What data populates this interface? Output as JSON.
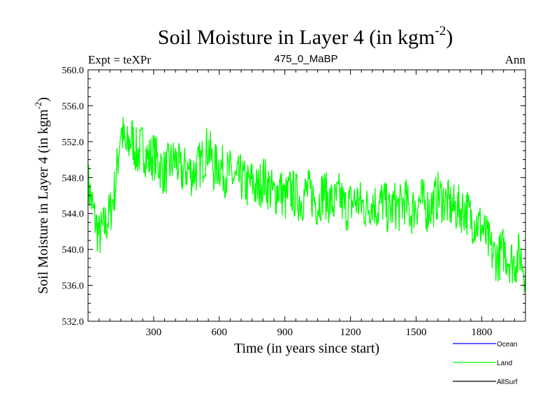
{
  "chart_data": {
    "type": "line",
    "title": "Soil Moisture in Layer 4 (in kgm",
    "title_superscript": "-2",
    "title_suffix": ")",
    "subtitle_left": "Expt = teXPr",
    "subtitle_center": "475_0_MaBP",
    "subtitle_right": "Ann",
    "xlabel": "Time (in years since start)",
    "ylabel": "Soil Moisture in Layer 4 (in kgm",
    "ylabel_superscript": "-2",
    "ylabel_suffix": ")",
    "xlim": [
      0,
      2000
    ],
    "ylim": [
      532.0,
      560.0
    ],
    "x_ticks": [
      300,
      600,
      900,
      1200,
      1500,
      1800
    ],
    "x_tick_labels": [
      "300",
      "600",
      "900",
      "1200",
      "1500",
      "1800"
    ],
    "y_ticks": [
      532,
      536,
      540,
      544,
      548,
      552,
      556,
      560
    ],
    "y_tick_labels": [
      "532.0",
      "536.0",
      "540.0",
      "544.0",
      "548.0",
      "552.0",
      "556.0",
      "560.0"
    ],
    "grid": false,
    "legend_position": "bottom-right",
    "legend": [
      {
        "name": "Ocean",
        "color": "#0000ff"
      },
      {
        "name": "Land",
        "color": "#00ff00"
      },
      {
        "name": "AllSurf",
        "color": "#000000"
      }
    ],
    "series": [
      {
        "name": "Land",
        "color": "#00ff00",
        "x": [
          0,
          25,
          50,
          75,
          100,
          125,
          150,
          175,
          200,
          225,
          250,
          275,
          300,
          325,
          350,
          375,
          400,
          425,
          450,
          475,
          500,
          525,
          550,
          575,
          600,
          625,
          650,
          675,
          700,
          725,
          750,
          775,
          800,
          825,
          850,
          875,
          900,
          925,
          950,
          975,
          1000,
          1025,
          1050,
          1075,
          1100,
          1125,
          1150,
          1175,
          1200,
          1225,
          1250,
          1275,
          1300,
          1325,
          1350,
          1375,
          1400,
          1425,
          1450,
          1475,
          1500,
          1525,
          1550,
          1575,
          1600,
          1625,
          1650,
          1675,
          1700,
          1725,
          1750,
          1775,
          1800,
          1825,
          1850,
          1875,
          1900,
          1925,
          1950,
          1975,
          2000
        ],
        "values": [
          547.5,
          544.0,
          541.5,
          542.5,
          544.0,
          547.0,
          553.5,
          551.0,
          552.5,
          550.5,
          551.5,
          550.0,
          550.5,
          549.5,
          548.5,
          549.5,
          550.0,
          548.5,
          549.0,
          548.5,
          549.0,
          550.0,
          551.5,
          549.0,
          549.5,
          548.5,
          548.5,
          547.5,
          548.0,
          547.0,
          547.5,
          546.5,
          548.0,
          547.0,
          546.0,
          547.0,
          545.5,
          546.5,
          546.0,
          545.5,
          546.5,
          546.0,
          545.0,
          546.5,
          545.5,
          545.0,
          546.0,
          544.5,
          545.0,
          545.5,
          545.0,
          544.5,
          545.5,
          544.5,
          545.5,
          544.0,
          545.0,
          544.5,
          545.5,
          544.0,
          545.0,
          545.5,
          544.5,
          545.0,
          546.0,
          545.5,
          545.0,
          544.5,
          544.5,
          544.5,
          543.5,
          543.0,
          542.5,
          541.0,
          539.5,
          539.0,
          540.0,
          539.0,
          538.5,
          539.5,
          537.5
        ]
      }
    ]
  }
}
